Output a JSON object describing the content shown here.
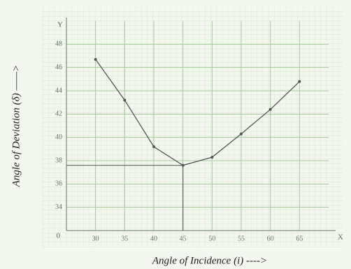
{
  "chart_data": {
    "type": "line",
    "x_label": "Angle of Incidence (i) ---->",
    "y_label": "Angle of Deviation (δ) ——>",
    "x_axis_letter": "X",
    "y_axis_letter": "Y",
    "origin_label": "0",
    "x": [
      30,
      35,
      40,
      45,
      50,
      55,
      60,
      65
    ],
    "series": [
      {
        "color": "#555555",
        "values": [
          46.7,
          43.2,
          39.2,
          37.6,
          38.3,
          40.3,
          42.4,
          44.8
        ]
      }
    ],
    "xlim": [
      25,
      70
    ],
    "xticks": [
      30,
      35,
      40,
      45,
      50,
      55,
      60,
      65
    ],
    "ylim": [
      32,
      50
    ],
    "yticks": [
      34,
      36,
      38,
      40,
      42,
      44,
      46,
      48
    ],
    "grid": true
  }
}
